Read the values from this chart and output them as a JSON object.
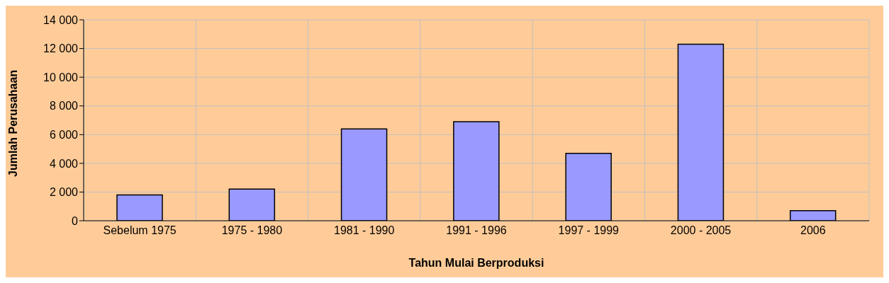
{
  "chart_data": {
    "type": "bar",
    "xlabel": "Tahun Mulai Berproduksi",
    "ylabel": "Jumlah Perusahaan",
    "categories": [
      "Sebelum 1975",
      "1975 - 1980",
      "1981 - 1990",
      "1991 - 1996",
      "1997 - 1999",
      "2000 - 2005",
      "2006"
    ],
    "values": [
      1800,
      2200,
      6400,
      6900,
      4700,
      12300,
      700
    ],
    "color": "#9999ff",
    "ylim": [
      0,
      14000
    ],
    "yticks": [
      {
        "value": 0,
        "label": "0"
      },
      {
        "value": 2000,
        "label": "2 000"
      },
      {
        "value": 4000,
        "label": "4 000"
      },
      {
        "value": 6000,
        "label": "6 000"
      },
      {
        "value": 8000,
        "label": "8 000"
      },
      {
        "value": 10000,
        "label": "10 000"
      },
      {
        "value": 12000,
        "label": "12 000"
      },
      {
        "value": 14000,
        "label": "14 000"
      }
    ],
    "grid": true
  }
}
